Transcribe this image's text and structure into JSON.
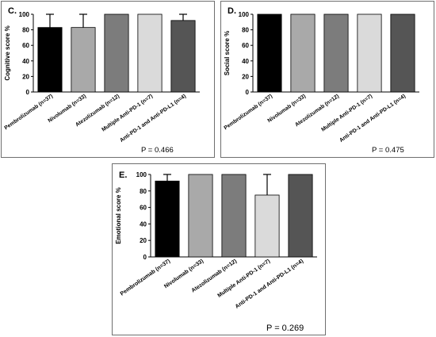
{
  "colors": {
    "pembrolizumab": "#000000",
    "nivolumab": "#a9a9a9",
    "atezolizumab": "#7c7c7c",
    "multiple_anti_pd1": "#dadada",
    "anti_pd1_and_pdl1": "#555555",
    "panel_border": "#6f6f6f"
  },
  "chart_data": [
    {
      "type": "bar",
      "panel_label": "C.",
      "ylabel": "Cognitive score %",
      "categories": [
        "Pembrolizumab (n=37)",
        "Nivolumab (n=33)",
        "Atezolizumab (n=12)",
        "Multiple Anti-PD-1 (n=7)",
        "Anti-PD-1 and Anti-PD-L1 (n=4)"
      ],
      "values": [
        83,
        83,
        100,
        100,
        92
      ],
      "error_upper": [
        100,
        100,
        100,
        100,
        100
      ],
      "ylim": [
        0,
        100
      ],
      "yticks": [
        "0",
        "20",
        "40",
        "60",
        "80",
        "100"
      ],
      "annotation": "P = 0.466"
    },
    {
      "type": "bar",
      "panel_label": "D.",
      "ylabel": "Social score %",
      "categories": [
        "Pembrolizumab (n=37)",
        "Nivolumab (n=33)",
        "Atezolizumab (n=12)",
        "Multiple Anti-PD-1 (n=7)",
        "Anti-PD-1 and Anti-PD-L1 (n=4)"
      ],
      "values": [
        100,
        100,
        100,
        100,
        100
      ],
      "error_upper": [
        100,
        100,
        100,
        100,
        100
      ],
      "ylim": [
        0,
        100
      ],
      "yticks": [
        "0",
        "20",
        "40",
        "60",
        "80",
        "100"
      ],
      "annotation": "P = 0.475"
    },
    {
      "type": "bar",
      "panel_label": "E.",
      "ylabel": "Emotional score %",
      "categories": [
        "Pembrolizumab (n=37)",
        "Nivolumab (n=33)",
        "Atezolizumab (n=12)",
        "Multiple Anti-PD-1 (n=7)",
        "Anti-PD-1 and Anti-PD-L1 (n=4)"
      ],
      "values": [
        92,
        100,
        100,
        75,
        100
      ],
      "error_upper": [
        100,
        100,
        100,
        100,
        100
      ],
      "ylim": [
        0,
        100
      ],
      "yticks": [
        "0",
        "20",
        "40",
        "60",
        "80",
        "100"
      ],
      "annotation": "P = 0.269"
    }
  ]
}
